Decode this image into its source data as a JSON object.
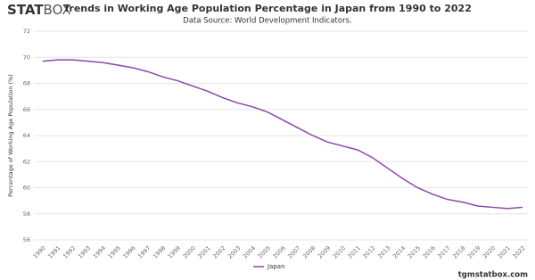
{
  "logo": {
    "bold": "STAT",
    "light": "BOX"
  },
  "footer": "tgmstatbox.com",
  "chart_data": {
    "type": "line",
    "title": "Trends in Working Age Population Percentage in Japan from 1990 to 2022",
    "subtitle": "Data Source: World Development Indicators.",
    "y_label": "Percentage of Working Age Population (%)",
    "categories": [
      "1990",
      "1991",
      "1992",
      "1993",
      "1994",
      "1995",
      "1996",
      "1997",
      "1998",
      "1999",
      "2000",
      "2001",
      "2002",
      "2003",
      "2004",
      "2005",
      "2006",
      "2007",
      "2008",
      "2009",
      "2010",
      "2011",
      "2012",
      "2013",
      "2014",
      "2015",
      "2016",
      "2017",
      "2018",
      "2019",
      "2020",
      "2021",
      "2022"
    ],
    "series": [
      {
        "name": "Japan",
        "color": "#8e44ad",
        "values": [
          69.7,
          69.8,
          69.8,
          69.7,
          69.6,
          69.4,
          69.2,
          68.9,
          68.5,
          68.2,
          67.8,
          67.4,
          66.9,
          66.5,
          66.2,
          65.8,
          65.2,
          64.6,
          64.0,
          63.5,
          63.2,
          62.9,
          62.3,
          61.5,
          60.7,
          60.0,
          59.5,
          59.1,
          58.9,
          58.6,
          58.5,
          58.4,
          58.5
        ]
      }
    ],
    "ylim": [
      56,
      72
    ],
    "yticks": [
      56,
      58,
      60,
      62,
      64,
      66,
      68,
      70,
      72
    ],
    "grid": true,
    "legend": "bottom"
  }
}
